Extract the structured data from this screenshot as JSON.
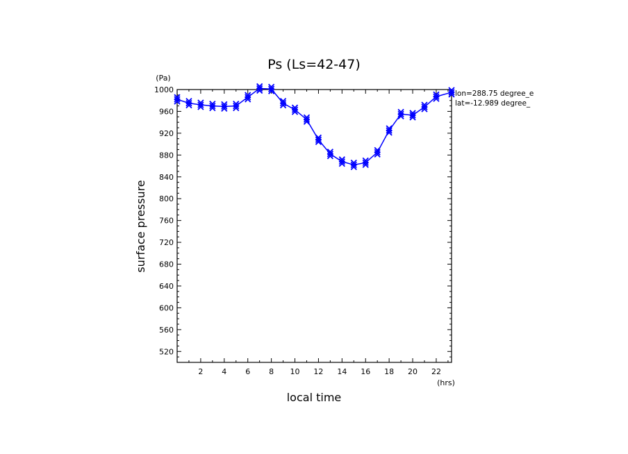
{
  "chart_data": {
    "type": "line",
    "title": "Ps (Ls=42-47)",
    "xlabel": "local time",
    "ylabel": "surface pressure",
    "xunit": "(hrs)",
    "yunit": "(Pa)",
    "xlim": [
      0,
      23.3
    ],
    "ylim": [
      500,
      1000
    ],
    "xticks": [
      2,
      4,
      6,
      8,
      10,
      12,
      14,
      16,
      18,
      20,
      22
    ],
    "yticks": [
      520,
      560,
      600,
      640,
      680,
      720,
      760,
      800,
      840,
      880,
      920,
      960,
      1000
    ],
    "annotations": [
      "lon=288.75 degree_e",
      "lat=-12.989 degree_"
    ],
    "color": "#0000ff",
    "marker": "x",
    "series": [
      {
        "x": [
          0,
          1,
          2,
          3,
          4,
          5,
          6,
          7,
          8,
          9,
          10,
          11,
          12,
          13,
          14,
          15,
          16,
          17,
          18,
          19,
          20,
          21,
          22,
          23.3
        ],
        "values": [
          982,
          975,
          972,
          970,
          969,
          970,
          986,
          1002,
          1001,
          975,
          963,
          945,
          908,
          882,
          868,
          862,
          866,
          885,
          925,
          955,
          953,
          968,
          987,
          995
        ]
      }
    ]
  }
}
